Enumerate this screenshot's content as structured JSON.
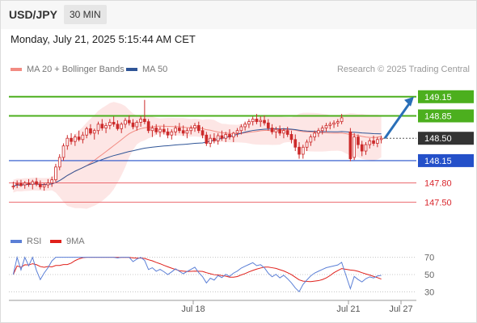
{
  "header": {
    "pair": "USD/JPY",
    "timeframe": "30 MIN",
    "timestamp": "Monday, July 21, 2025 5:15:44 AM CET"
  },
  "legend": {
    "bollinger": {
      "label": "MA 20 + Bollinger Bands",
      "color": "#f28b82"
    },
    "ma50": {
      "label": "MA 50",
      "color": "#2f5597"
    },
    "credit": "Research © 2025 Trading Central"
  },
  "rsi_legend": {
    "rsi": {
      "label": "RSI",
      "color": "#5b7fd6"
    },
    "ma9": {
      "label": "9MA",
      "color": "#e0201b"
    }
  },
  "colors": {
    "resistance": "#4caf1e",
    "support_major": "#2450c9",
    "support_minor": "#e8555a",
    "current": "#333333",
    "candle": "#cc2a2a",
    "arrow": "#2a6fb8"
  },
  "chart_data": {
    "type": "candlestick",
    "ylim": [
      147.1,
      149.4
    ],
    "levels": [
      {
        "label": "149.15",
        "value": 149.15,
        "kind": "resistance"
      },
      {
        "label": "148.85",
        "value": 148.85,
        "kind": "resistance"
      },
      {
        "label": "148.50",
        "value": 148.5,
        "kind": "current"
      },
      {
        "label": "148.15",
        "value": 148.15,
        "kind": "support_major"
      },
      {
        "label": "147.80",
        "value": 147.8,
        "kind": "support_minor"
      },
      {
        "label": "147.50",
        "value": 147.5,
        "kind": "support_minor"
      }
    ],
    "forecast": {
      "from": 148.5,
      "to": 149.15
    },
    "candles": [
      [
        147.75,
        147.82,
        147.7,
        147.75
      ],
      [
        147.78,
        147.84,
        147.72,
        147.79
      ],
      [
        147.79,
        147.85,
        147.74,
        147.76
      ],
      [
        147.77,
        147.83,
        147.71,
        147.8
      ],
      [
        147.8,
        147.86,
        147.74,
        147.78
      ],
      [
        147.78,
        147.85,
        147.7,
        147.82
      ],
      [
        147.82,
        147.88,
        147.75,
        147.78
      ],
      [
        147.78,
        147.84,
        147.7,
        147.74
      ],
      [
        147.74,
        147.8,
        147.68,
        147.77
      ],
      [
        147.77,
        147.86,
        147.72,
        147.8
      ],
      [
        147.8,
        147.9,
        147.74,
        147.85
      ],
      [
        147.85,
        148.1,
        147.82,
        148.05
      ],
      [
        148.05,
        148.25,
        148.0,
        148.2
      ],
      [
        148.2,
        148.42,
        148.15,
        148.38
      ],
      [
        148.38,
        148.55,
        148.32,
        148.5
      ],
      [
        148.5,
        148.58,
        148.4,
        148.45
      ],
      [
        148.45,
        148.56,
        148.38,
        148.52
      ],
      [
        148.52,
        148.62,
        148.45,
        148.48
      ],
      [
        148.48,
        148.6,
        148.42,
        148.55
      ],
      [
        148.55,
        148.68,
        148.5,
        148.65
      ],
      [
        148.65,
        148.72,
        148.55,
        148.58
      ],
      [
        148.58,
        148.65,
        148.48,
        148.62
      ],
      [
        148.62,
        148.76,
        148.56,
        148.72
      ],
      [
        148.72,
        148.8,
        148.62,
        148.66
      ],
      [
        148.66,
        148.74,
        148.58,
        148.7
      ],
      [
        148.7,
        148.8,
        148.64,
        148.75
      ],
      [
        148.75,
        148.84,
        148.68,
        148.72
      ],
      [
        148.72,
        148.78,
        148.62,
        148.65
      ],
      [
        148.65,
        148.75,
        148.58,
        148.72
      ],
      [
        148.72,
        148.82,
        148.66,
        148.78
      ],
      [
        148.78,
        148.86,
        148.7,
        148.74
      ],
      [
        148.74,
        148.8,
        148.64,
        148.68
      ],
      [
        148.68,
        148.78,
        148.62,
        148.75
      ],
      [
        148.75,
        148.85,
        148.68,
        148.8
      ],
      [
        148.8,
        149.1,
        148.72,
        148.76
      ],
      [
        148.76,
        148.8,
        148.58,
        148.62
      ],
      [
        148.62,
        148.7,
        148.52,
        148.66
      ],
      [
        148.66,
        148.72,
        148.56,
        148.6
      ],
      [
        148.6,
        148.68,
        148.52,
        148.64
      ],
      [
        148.64,
        148.72,
        148.56,
        148.6
      ],
      [
        148.6,
        148.66,
        148.5,
        148.55
      ],
      [
        148.55,
        148.64,
        148.48,
        148.6
      ],
      [
        148.6,
        148.7,
        148.54,
        148.66
      ],
      [
        148.66,
        148.74,
        148.58,
        148.62
      ],
      [
        148.62,
        148.7,
        148.54,
        148.58
      ],
      [
        148.58,
        148.66,
        148.5,
        148.62
      ],
      [
        148.62,
        148.7,
        148.56,
        148.66
      ],
      [
        148.66,
        148.74,
        148.6,
        148.7
      ],
      [
        148.7,
        148.76,
        148.58,
        148.62
      ],
      [
        148.62,
        148.68,
        148.5,
        148.55
      ],
      [
        148.55,
        148.6,
        148.38,
        148.42
      ],
      [
        148.42,
        148.56,
        148.36,
        148.5
      ],
      [
        148.5,
        148.58,
        148.42,
        148.46
      ],
      [
        148.46,
        148.58,
        148.4,
        148.54
      ],
      [
        148.54,
        148.62,
        148.46,
        148.5
      ],
      [
        148.5,
        148.6,
        148.44,
        148.56
      ],
      [
        148.56,
        148.64,
        148.48,
        148.52
      ],
      [
        148.52,
        148.6,
        148.44,
        148.58
      ],
      [
        148.58,
        148.66,
        148.52,
        148.62
      ],
      [
        148.62,
        148.72,
        148.56,
        148.68
      ],
      [
        148.68,
        148.76,
        148.62,
        148.72
      ],
      [
        148.72,
        148.8,
        148.66,
        148.76
      ],
      [
        148.76,
        148.84,
        148.7,
        148.8
      ],
      [
        148.8,
        148.88,
        148.72,
        148.76
      ],
      [
        148.76,
        148.84,
        148.68,
        148.78
      ],
      [
        148.78,
        148.86,
        148.7,
        148.74
      ],
      [
        148.74,
        148.8,
        148.62,
        148.66
      ],
      [
        148.66,
        148.72,
        148.56,
        148.6
      ],
      [
        148.6,
        148.68,
        148.5,
        148.64
      ],
      [
        148.64,
        148.7,
        148.54,
        148.58
      ],
      [
        148.58,
        148.66,
        148.5,
        148.62
      ],
      [
        148.62,
        148.68,
        148.52,
        148.56
      ],
      [
        148.56,
        148.62,
        148.42,
        148.48
      ],
      [
        148.48,
        148.56,
        148.3,
        148.36
      ],
      [
        148.36,
        148.44,
        148.18,
        148.25
      ],
      [
        148.25,
        148.4,
        148.18,
        148.36
      ],
      [
        148.36,
        148.48,
        148.3,
        148.44
      ],
      [
        148.44,
        148.56,
        148.38,
        148.52
      ],
      [
        148.52,
        148.62,
        148.46,
        148.58
      ],
      [
        148.58,
        148.66,
        148.52,
        148.62
      ],
      [
        148.62,
        148.7,
        148.56,
        148.66
      ],
      [
        148.66,
        148.74,
        148.6,
        148.7
      ],
      [
        148.7,
        148.76,
        148.64,
        148.72
      ],
      [
        148.72,
        148.78,
        148.66,
        148.74
      ],
      [
        148.74,
        148.8,
        148.68,
        148.76
      ],
      [
        148.76,
        148.88,
        148.72,
        148.82
      ],
      [
        148.6,
        148.66,
        148.14,
        148.18
      ],
      [
        148.2,
        148.58,
        148.16,
        148.52
      ],
      [
        148.52,
        148.56,
        148.34,
        148.4
      ],
      [
        148.4,
        148.46,
        148.22,
        148.3
      ],
      [
        148.3,
        148.44,
        148.24,
        148.4
      ],
      [
        148.4,
        148.5,
        148.34,
        148.46
      ],
      [
        148.46,
        148.54,
        148.38,
        148.42
      ],
      [
        148.42,
        148.52,
        148.36,
        148.48
      ],
      [
        148.48,
        148.54,
        148.42,
        148.5
      ]
    ],
    "gap_after_index": 85,
    "rsi": {
      "ticks": [
        70,
        50,
        30
      ],
      "ylim": [
        20,
        80
      ]
    },
    "x_labels": [
      "Jul 18",
      "Jul 21",
      "Jul 27"
    ]
  }
}
